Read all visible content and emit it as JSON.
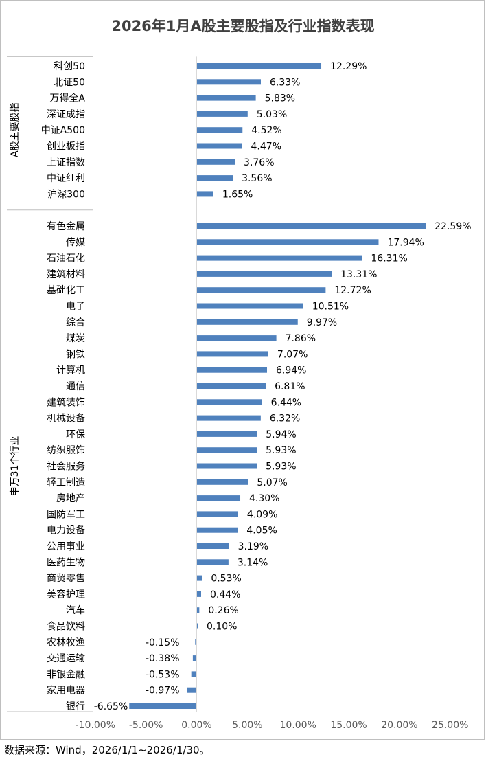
{
  "chart_data": {
    "type": "bar",
    "orientation": "horizontal",
    "title": "2026年1月A股主要股指及行业指数表现",
    "source": "数据来源：Wind，2026/1/1~2026/1/30。",
    "xlim": [
      -10,
      25
    ],
    "x_ticks": [
      "-10.00%",
      "-5.00%",
      "0.00%",
      "5.00%",
      "10.00%",
      "15.00%",
      "20.00%",
      "25.00%"
    ],
    "bar_color": "#4f81bd",
    "groups": [
      {
        "name": "A股主要股指",
        "categories": [
          "科创50",
          "北证50",
          "万得全A",
          "深证成指",
          "中证A500",
          "创业板指",
          "上证指数",
          "中证红利",
          "沪深300"
        ],
        "values": [
          12.29,
          6.33,
          5.83,
          5.03,
          4.52,
          4.47,
          3.76,
          3.56,
          1.65
        ],
        "labels": [
          "12.29%",
          "6.33%",
          "5.83%",
          "5.03%",
          "4.52%",
          "4.47%",
          "3.76%",
          "3.56%",
          "1.65%"
        ]
      },
      {
        "name": "申万31个行业",
        "categories": [
          "有色金属",
          "传媒",
          "石油石化",
          "建筑材料",
          "基础化工",
          "电子",
          "综合",
          "煤炭",
          "钢铁",
          "计算机",
          "通信",
          "建筑装饰",
          "机械设备",
          "环保",
          "纺织服饰",
          "社会服务",
          "轻工制造",
          "房地产",
          "国防军工",
          "电力设备",
          "公用事业",
          "医药生物",
          "商贸零售",
          "美容护理",
          "汽车",
          "食品饮料",
          "农林牧渔",
          "交通运输",
          "非银金融",
          "家用电器",
          "银行"
        ],
        "values": [
          22.59,
          17.94,
          16.31,
          13.31,
          12.72,
          10.51,
          9.97,
          7.86,
          7.07,
          6.94,
          6.81,
          6.44,
          6.32,
          5.94,
          5.93,
          5.93,
          5.07,
          4.3,
          4.09,
          4.05,
          3.19,
          3.14,
          0.53,
          0.44,
          0.26,
          0.1,
          -0.15,
          -0.38,
          -0.53,
          -0.97,
          -6.65
        ],
        "labels": [
          "22.59%",
          "17.94%",
          "16.31%",
          "13.31%",
          "12.72%",
          "10.51%",
          "9.97%",
          "7.86%",
          "7.07%",
          "6.94%",
          "6.81%",
          "6.44%",
          "6.32%",
          "5.94%",
          "5.93%",
          "5.93%",
          "5.07%",
          "4.30%",
          "4.09%",
          "4.05%",
          "3.19%",
          "3.14%",
          "0.53%",
          "0.44%",
          "0.26%",
          "0.10%",
          "-0.15%",
          "-0.38%",
          "-0.53%",
          "-0.97%",
          "-6.65%"
        ]
      }
    ],
    "grid": false,
    "legend": "none"
  }
}
